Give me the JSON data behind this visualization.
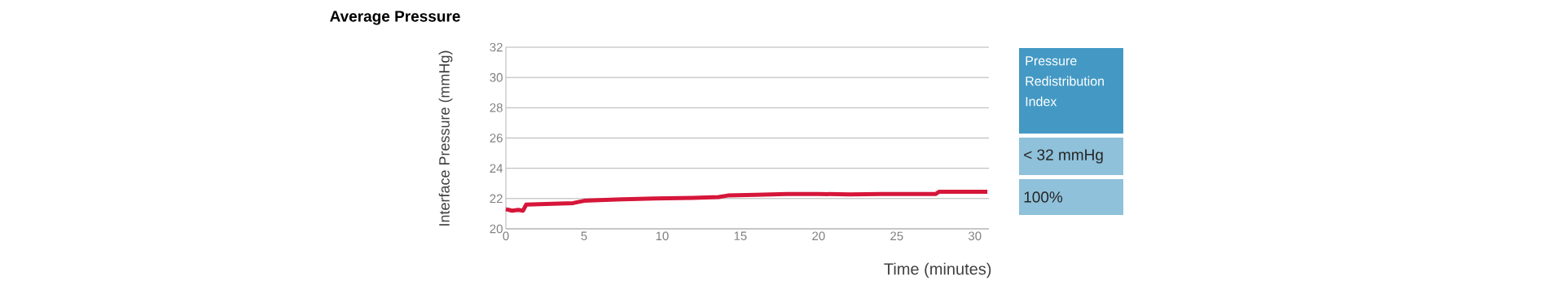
{
  "chart_data": {
    "type": "line",
    "title": "Average Pressure",
    "xlabel": "Time (minutes)",
    "ylabel": "Interface Pressure (mmHg)",
    "x": [
      0,
      0.4,
      0.8,
      1.1,
      1.3,
      3,
      4.3,
      5,
      6,
      7.5,
      9.5,
      12,
      13.6,
      14.2,
      16,
      18,
      20,
      22,
      24,
      27.5,
      27.7,
      30,
      30.8
    ],
    "series": [
      {
        "color": "#d6163a",
        "values": [
          21.3,
          21.2,
          21.25,
          21.2,
          21.6,
          21.65,
          21.7,
          21.85,
          21.9,
          21.95,
          22.0,
          22.05,
          22.1,
          22.2,
          22.25,
          22.3,
          22.3,
          22.28,
          22.3,
          22.3,
          22.45,
          22.45,
          22.45
        ]
      }
    ],
    "xlim": [
      0,
      30.9
    ],
    "xticks": [
      0,
      5,
      10,
      15,
      20,
      25,
      30
    ],
    "ylim": [
      20,
      32
    ],
    "yticks": [
      20,
      22,
      24,
      26,
      28,
      30,
      32
    ],
    "grid": "y",
    "annotations": [
      "Pressure Redistribution Index",
      "< 32 mmHg",
      "100%"
    ]
  }
}
